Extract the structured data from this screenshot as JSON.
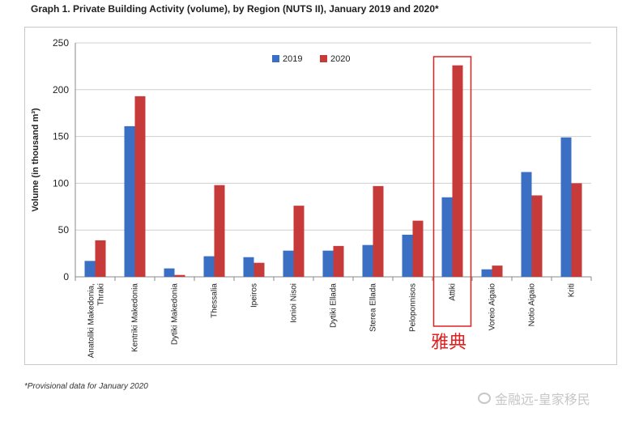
{
  "title": "Graph 1. Private Building Activity (volume), by Region (NUTS II), January 2019 and 2020*",
  "footnote": "*Provisional data for January 2020",
  "annotation_text": "雅典",
  "watermark_text": "金融远-皇家移民",
  "colors": {
    "series_2019": "#3a6fc4",
    "series_2020": "#c63a3a",
    "highlight": "#e02020",
    "grid": "#cfcfcf"
  },
  "chart_data": {
    "type": "bar",
    "title": "Graph 1. Private Building Activity (volume), by Region (NUTS II), January 2019 and 2020*",
    "ylabel": "Volume (in thousand m³)",
    "xlabel": "",
    "ylim": [
      0,
      250
    ],
    "yticks": [
      0,
      50,
      100,
      150,
      200,
      250
    ],
    "grid": true,
    "legend": "top-center",
    "highlighted_category": "Attiki",
    "categories": [
      "Anatoliki Makedonia, Thraki",
      "Kentriki Makedonia",
      "Dytiki Makedonia",
      "Thessalia",
      "Ipeiros",
      "Ionioi Nisoi",
      "Dytiki Ellada",
      "Sterea Ellada",
      "Peloponnisos",
      "Attiki",
      "Voreio Aigaio",
      "Notio Aigaio",
      "Kriti"
    ],
    "series": [
      {
        "name": "2019",
        "values": [
          17,
          161,
          9,
          22,
          21,
          28,
          28,
          34,
          45,
          85,
          8,
          112,
          149
        ]
      },
      {
        "name": "2020",
        "values": [
          39,
          193,
          2,
          98,
          15,
          76,
          33,
          97,
          60,
          226,
          12,
          87,
          100
        ]
      }
    ]
  }
}
